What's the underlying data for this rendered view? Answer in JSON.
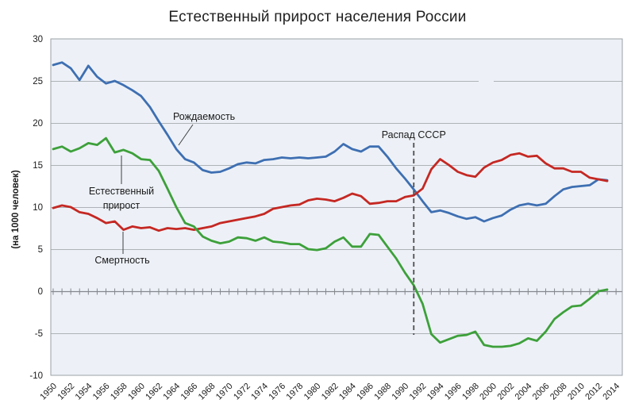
{
  "title": "Естественный прирост населения России",
  "chart_data": {
    "type": "line",
    "title": "Естественный прирост населения России",
    "xlabel": "",
    "ylabel": "(на 1000 человек)",
    "ylim": [
      -10,
      30
    ],
    "xlim": [
      1950,
      2015
    ],
    "grid": true,
    "legend_position": "none (inline curve labels)",
    "yticks": [
      30,
      25,
      20,
      15,
      10,
      5,
      0,
      -5,
      -10
    ],
    "xticks": [
      1950,
      1952,
      1954,
      1956,
      1958,
      1960,
      1962,
      1964,
      1966,
      1968,
      1970,
      1972,
      1974,
      1976,
      1978,
      1980,
      1982,
      1984,
      1986,
      1988,
      1990,
      1992,
      1994,
      1996,
      1998,
      2000,
      2002,
      2004,
      2006,
      2008,
      2010,
      2012,
      2014
    ],
    "x": [
      1950,
      1951,
      1952,
      1953,
      1954,
      1955,
      1956,
      1957,
      1958,
      1959,
      1960,
      1961,
      1962,
      1963,
      1964,
      1965,
      1966,
      1967,
      1968,
      1969,
      1970,
      1971,
      1972,
      1973,
      1974,
      1975,
      1976,
      1977,
      1978,
      1979,
      1980,
      1981,
      1982,
      1983,
      1984,
      1985,
      1986,
      1987,
      1988,
      1989,
      1990,
      1991,
      1992,
      1993,
      1994,
      1995,
      1996,
      1997,
      1998,
      1999,
      2000,
      2001,
      2002,
      2003,
      2004,
      2005,
      2006,
      2007,
      2008,
      2009,
      2010,
      2011,
      2012,
      2013
    ],
    "series": [
      {
        "name": "Рождаемость",
        "color": "#3e6fb2",
        "values": [
          26.9,
          27.2,
          26.5,
          25.1,
          26.8,
          25.5,
          24.7,
          25.0,
          24.5,
          23.9,
          23.2,
          21.9,
          20.2,
          18.6,
          16.9,
          15.7,
          15.3,
          14.4,
          14.1,
          14.2,
          14.6,
          15.1,
          15.3,
          15.2,
          15.6,
          15.7,
          15.9,
          15.8,
          15.9,
          15.8,
          15.9,
          16.0,
          16.6,
          17.5,
          16.9,
          16.6,
          17.2,
          17.2,
          16.0,
          14.6,
          13.4,
          12.1,
          10.7,
          9.4,
          9.6,
          9.3,
          8.9,
          8.6,
          8.8,
          8.3,
          8.7,
          9.0,
          9.7,
          10.2,
          10.4,
          10.2,
          10.4,
          11.3,
          12.1,
          12.4,
          12.5,
          12.6,
          13.3,
          13.2
        ]
      },
      {
        "name": "Смертность",
        "color": "#c52823",
        "values": [
          9.9,
          10.2,
          10.0,
          9.4,
          9.2,
          8.7,
          8.1,
          8.3,
          7.3,
          7.7,
          7.5,
          7.6,
          7.2,
          7.5,
          7.4,
          7.5,
          7.3,
          7.5,
          7.7,
          8.1,
          8.3,
          8.5,
          8.7,
          8.9,
          9.2,
          9.8,
          10.0,
          10.2,
          10.3,
          10.8,
          11.0,
          10.9,
          10.7,
          11.1,
          11.6,
          11.3,
          10.4,
          10.5,
          10.7,
          10.7,
          11.2,
          11.4,
          12.2,
          14.5,
          15.7,
          15.0,
          14.2,
          13.8,
          13.6,
          14.7,
          15.3,
          15.6,
          16.2,
          16.4,
          16.0,
          16.1,
          15.2,
          14.6,
          14.6,
          14.2,
          14.2,
          13.5,
          13.3,
          13.1
        ]
      },
      {
        "name": "Естественный прирост",
        "color": "#3da03a",
        "values": [
          16.9,
          17.2,
          16.6,
          17.0,
          17.6,
          17.4,
          18.2,
          16.5,
          16.8,
          16.4,
          15.7,
          15.6,
          14.3,
          12.2,
          10.0,
          8.1,
          7.7,
          6.5,
          6.0,
          5.7,
          5.9,
          6.4,
          6.3,
          6.0,
          6.4,
          5.9,
          5.8,
          5.6,
          5.6,
          5.0,
          4.9,
          5.1,
          5.9,
          6.4,
          5.3,
          5.3,
          6.8,
          6.7,
          5.3,
          3.9,
          2.2,
          0.7,
          -1.5,
          -5.1,
          -6.1,
          -5.7,
          -5.3,
          -5.2,
          -4.8,
          -6.4,
          -6.6,
          -6.6,
          -6.5,
          -6.2,
          -5.6,
          -5.9,
          -4.8,
          -3.3,
          -2.5,
          -1.8,
          -1.7,
          -0.9,
          0.0,
          0.2
        ]
      }
    ],
    "annotations": [
      {
        "id": "birth-label",
        "text": "Рождаемость",
        "series": "Рождаемость",
        "anchor_year": 1964
      },
      {
        "id": "natural-label",
        "text": "Естественный прирост",
        "lines": [
          "Естественный",
          "прирост"
        ],
        "series": "Естественный прирост",
        "anchor_year": 1958
      },
      {
        "id": "death-label",
        "text": "Смертность",
        "series": "Смертность",
        "anchor_year": 1958
      },
      {
        "id": "ussr-collapse",
        "text": "Распад СССР",
        "type": "vline",
        "year": 1991
      }
    ]
  },
  "colors": {
    "plot_background": "#edf1f7",
    "gridline": "#aeb3b8",
    "axis": "#85898e",
    "border": "#9ba1a6",
    "annotation_text": "#1a1a1a",
    "dashed_line": "#4d4d4d"
  }
}
